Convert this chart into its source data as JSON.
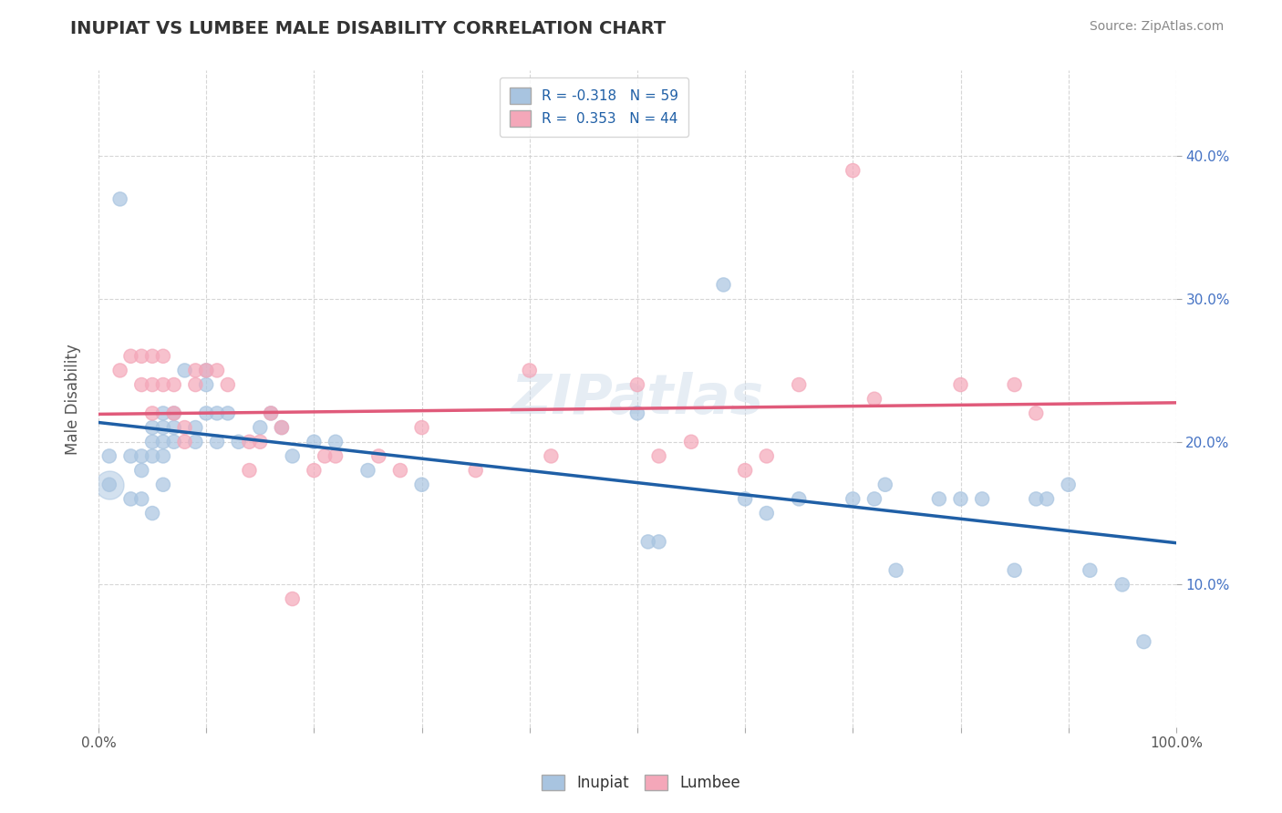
{
  "title": "INUPIAT VS LUMBEE MALE DISABILITY CORRELATION CHART",
  "source": "Source: ZipAtlas.com",
  "ylabel": "Male Disability",
  "legend_labels": [
    "Inupiat",
    "Lumbee"
  ],
  "inupiat_color": "#a8c4e0",
  "lumbee_color": "#f4a7b9",
  "inupiat_line_color": "#1f5fa6",
  "lumbee_line_color": "#e05a7a",
  "R_inupiat": -0.318,
  "N_inupiat": 59,
  "R_lumbee": 0.353,
  "N_lumbee": 44,
  "background_color": "#ffffff",
  "grid_color": "#cccccc",
  "watermark": "ZIPatlas",
  "xlim": [
    0.0,
    1.0
  ],
  "ylim": [
    0.0,
    0.46
  ],
  "ytick_vals": [
    0.1,
    0.2,
    0.3,
    0.4
  ],
  "ytick_labels": [
    "10.0%",
    "20.0%",
    "30.0%",
    "40.0%"
  ],
  "inupiat_x": [
    0.01,
    0.01,
    0.02,
    0.03,
    0.03,
    0.04,
    0.04,
    0.04,
    0.05,
    0.05,
    0.05,
    0.05,
    0.06,
    0.06,
    0.06,
    0.06,
    0.06,
    0.07,
    0.07,
    0.07,
    0.08,
    0.09,
    0.09,
    0.1,
    0.1,
    0.1,
    0.11,
    0.11,
    0.12,
    0.13,
    0.15,
    0.16,
    0.17,
    0.18,
    0.2,
    0.22,
    0.25,
    0.3,
    0.5,
    0.51,
    0.52,
    0.58,
    0.6,
    0.62,
    0.65,
    0.7,
    0.72,
    0.73,
    0.74,
    0.78,
    0.8,
    0.82,
    0.85,
    0.87,
    0.88,
    0.9,
    0.92,
    0.95,
    0.97
  ],
  "inupiat_y": [
    0.19,
    0.17,
    0.37,
    0.19,
    0.16,
    0.19,
    0.18,
    0.16,
    0.21,
    0.2,
    0.19,
    0.15,
    0.22,
    0.21,
    0.2,
    0.19,
    0.17,
    0.22,
    0.21,
    0.2,
    0.25,
    0.21,
    0.2,
    0.25,
    0.24,
    0.22,
    0.22,
    0.2,
    0.22,
    0.2,
    0.21,
    0.22,
    0.21,
    0.19,
    0.2,
    0.2,
    0.18,
    0.17,
    0.22,
    0.13,
    0.13,
    0.31,
    0.16,
    0.15,
    0.16,
    0.16,
    0.16,
    0.17,
    0.11,
    0.16,
    0.16,
    0.16,
    0.11,
    0.16,
    0.16,
    0.17,
    0.11,
    0.1,
    0.06
  ],
  "inupiat_size": [
    30,
    30,
    30,
    30,
    30,
    30,
    30,
    30,
    30,
    30,
    30,
    30,
    30,
    30,
    30,
    30,
    30,
    30,
    30,
    30,
    30,
    30,
    30,
    30,
    30,
    30,
    30,
    30,
    30,
    30,
    30,
    30,
    30,
    30,
    30,
    30,
    30,
    30,
    30,
    30,
    30,
    30,
    30,
    30,
    30,
    30,
    30,
    30,
    30,
    30,
    30,
    30,
    30,
    30,
    30,
    30,
    30,
    30,
    30
  ],
  "inupiat_bubble_x": [
    0.01
  ],
  "inupiat_bubble_y": [
    0.17
  ],
  "inupiat_bubble_size": [
    500
  ],
  "lumbee_x": [
    0.02,
    0.03,
    0.04,
    0.04,
    0.05,
    0.05,
    0.05,
    0.06,
    0.06,
    0.07,
    0.07,
    0.08,
    0.08,
    0.09,
    0.09,
    0.1,
    0.11,
    0.12,
    0.14,
    0.14,
    0.15,
    0.16,
    0.17,
    0.18,
    0.2,
    0.21,
    0.22,
    0.26,
    0.28,
    0.3,
    0.35,
    0.4,
    0.42,
    0.5,
    0.52,
    0.55,
    0.6,
    0.62,
    0.65,
    0.7,
    0.72,
    0.8,
    0.85,
    0.87
  ],
  "lumbee_y": [
    0.25,
    0.26,
    0.26,
    0.24,
    0.26,
    0.24,
    0.22,
    0.26,
    0.24,
    0.24,
    0.22,
    0.21,
    0.2,
    0.25,
    0.24,
    0.25,
    0.25,
    0.24,
    0.2,
    0.18,
    0.2,
    0.22,
    0.21,
    0.09,
    0.18,
    0.19,
    0.19,
    0.19,
    0.18,
    0.21,
    0.18,
    0.25,
    0.19,
    0.24,
    0.19,
    0.2,
    0.18,
    0.19,
    0.24,
    0.39,
    0.23,
    0.24,
    0.24,
    0.22
  ],
  "lumbee_size": [
    30,
    30,
    30,
    30,
    30,
    30,
    30,
    30,
    30,
    30,
    30,
    30,
    30,
    30,
    30,
    30,
    30,
    30,
    30,
    30,
    30,
    30,
    30,
    30,
    30,
    30,
    30,
    30,
    30,
    30,
    30,
    30,
    30,
    30,
    30,
    30,
    30,
    30,
    30,
    30,
    30,
    30,
    30,
    30
  ]
}
